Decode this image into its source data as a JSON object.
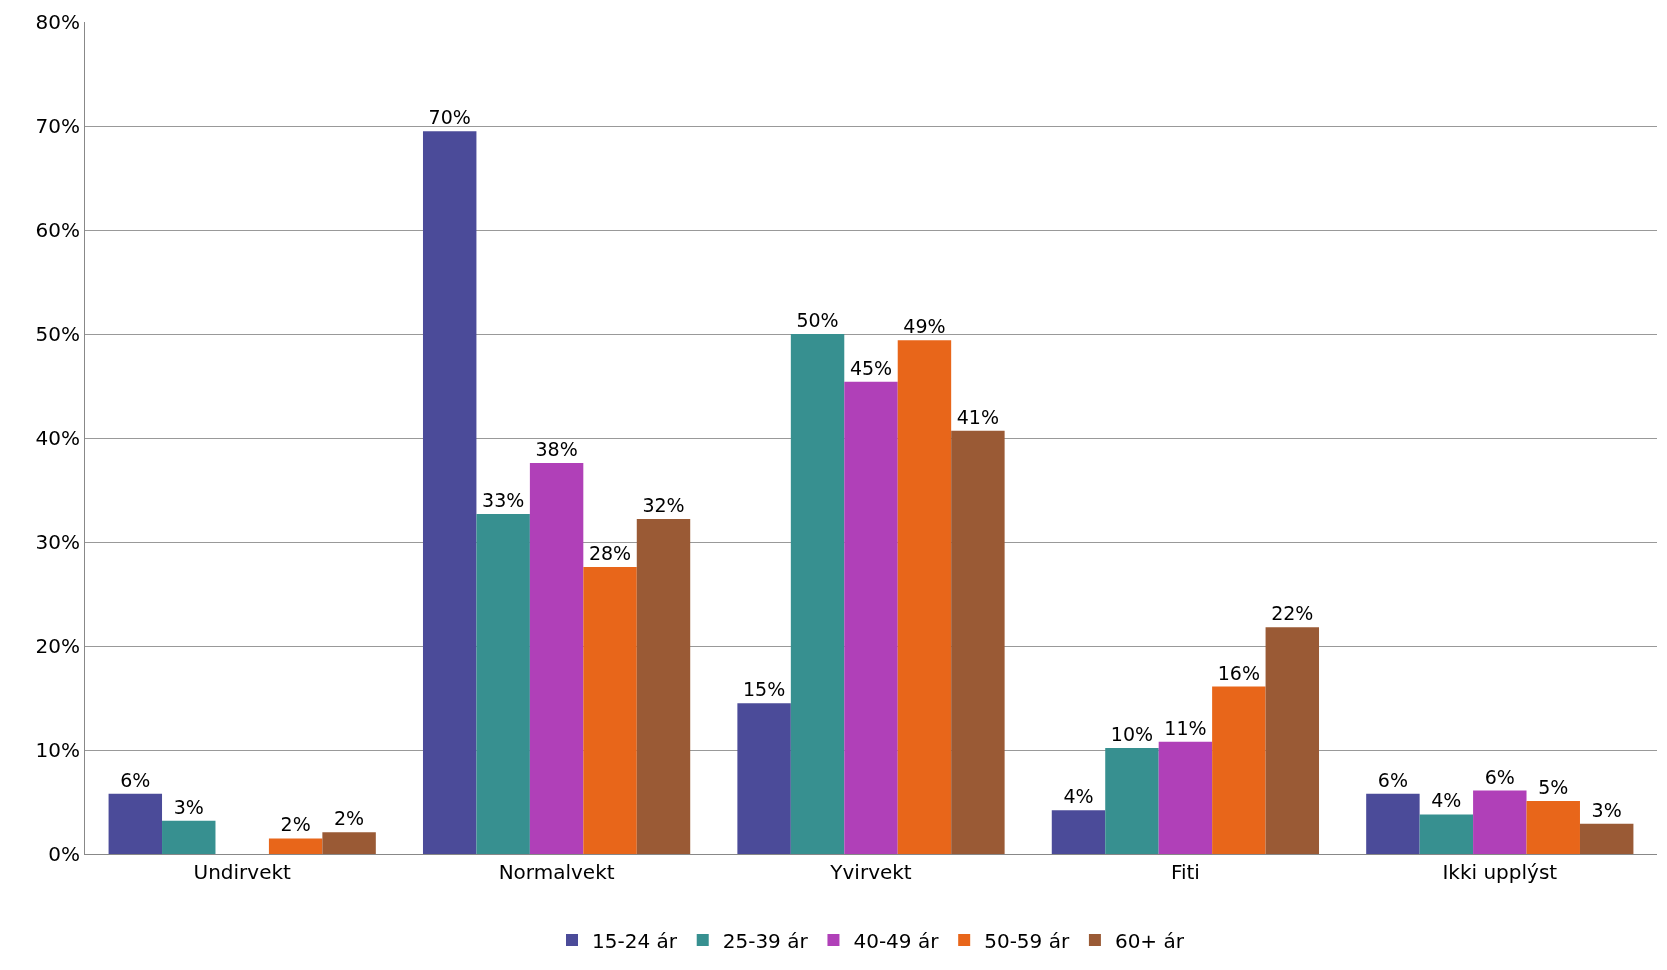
{
  "chart_data": {
    "type": "bar",
    "categories": [
      "Undirvekt",
      "Normalvekt",
      "Yvirvekt",
      "Fiti",
      "Ikki upplýst"
    ],
    "series": [
      {
        "name": "15-24 ár",
        "color": "#4b4b99",
        "values": [
          5.8,
          69.5,
          14.5,
          4.2,
          5.8
        ],
        "value_labels": [
          "6%",
          "70%",
          "15%",
          "4%",
          "6%"
        ]
      },
      {
        "name": "25-39 ár",
        "color": "#379090",
        "values": [
          3.2,
          32.7,
          50,
          10.2,
          3.8
        ],
        "value_labels": [
          "3%",
          "33%",
          "50%",
          "10%",
          "4%"
        ]
      },
      {
        "name": "40-49 ár",
        "color": "#b040b8",
        "values": [
          null,
          37.6,
          45.4,
          10.8,
          6.1
        ],
        "value_labels": [
          null,
          "38%",
          "45%",
          "11%",
          "6%"
        ]
      },
      {
        "name": "50-59 ár",
        "color": "#e8661a",
        "values": [
          1.5,
          27.6,
          49.4,
          16.1,
          5.1
        ],
        "value_labels": [
          "2%",
          "28%",
          "49%",
          "16%",
          "5%"
        ]
      },
      {
        "name": "60+ ár",
        "color": "#9a5a35",
        "values": [
          2.1,
          32.2,
          40.7,
          21.8,
          2.9
        ],
        "value_labels": [
          "2%",
          "32%",
          "41%",
          "22%",
          "3%"
        ]
      }
    ],
    "ylim": [
      0,
      80
    ],
    "yticks": [
      {
        "value": 0,
        "label": "0%"
      },
      {
        "value": 10,
        "label": "10%"
      },
      {
        "value": 20,
        "label": "20%"
      },
      {
        "value": 30,
        "label": "30%"
      },
      {
        "value": 40,
        "label": "40%"
      },
      {
        "value": 50,
        "label": "50%"
      },
      {
        "value": 60,
        "label": "60%"
      },
      {
        "value": 70,
        "label": "70%"
      },
      {
        "value": 80,
        "label": "80%"
      }
    ],
    "grid": "y",
    "legend": "bottom"
  }
}
